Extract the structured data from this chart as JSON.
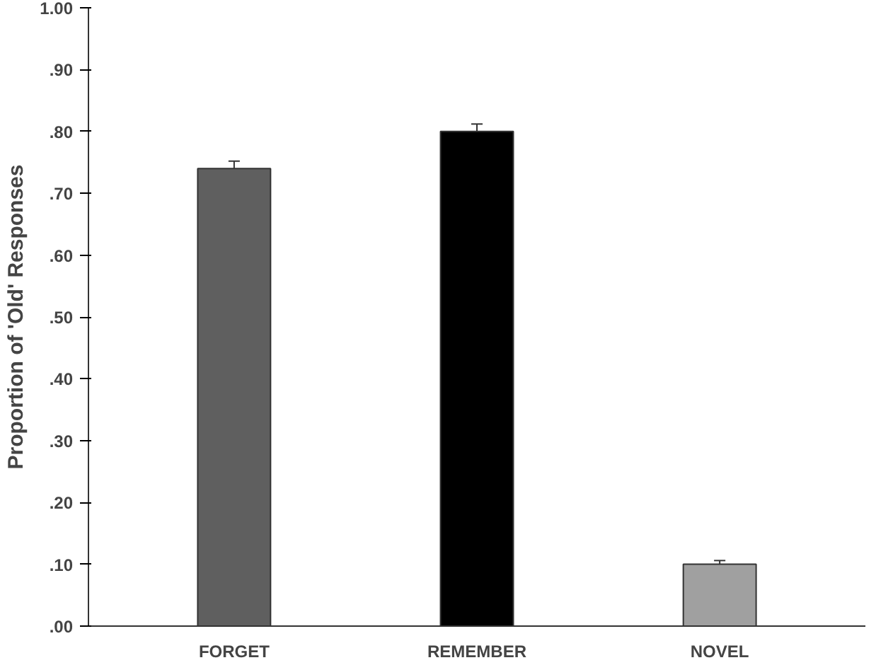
{
  "chart_data": {
    "type": "bar",
    "ylabel": "Proportion of 'Old' Responses",
    "categories": [
      "FORGET",
      "REMEMBER",
      "NOVEL"
    ],
    "values": [
      0.74,
      0.8,
      0.1
    ],
    "colors": [
      "#5f5f5f",
      "#000000",
      "#a0a0a0"
    ],
    "errors": [
      0.012,
      0.012,
      0.006
    ],
    "ylim": [
      0,
      1
    ],
    "yticks": [
      {
        "value": 0,
        "label": ".00"
      },
      {
        "value": 0.1,
        "label": ".10"
      },
      {
        "value": 0.2,
        "label": ".20"
      },
      {
        "value": 0.3,
        "label": ".30"
      },
      {
        "value": 0.4,
        "label": ".40"
      },
      {
        "value": 0.5,
        "label": ".50"
      },
      {
        "value": 0.6,
        "label": ".60"
      },
      {
        "value": 0.7,
        "label": ".70"
      },
      {
        "value": 0.8,
        "label": ".80"
      },
      {
        "value": 0.9,
        "label": ".90"
      },
      {
        "value": 1,
        "label": "1.00"
      }
    ],
    "grid": false
  }
}
